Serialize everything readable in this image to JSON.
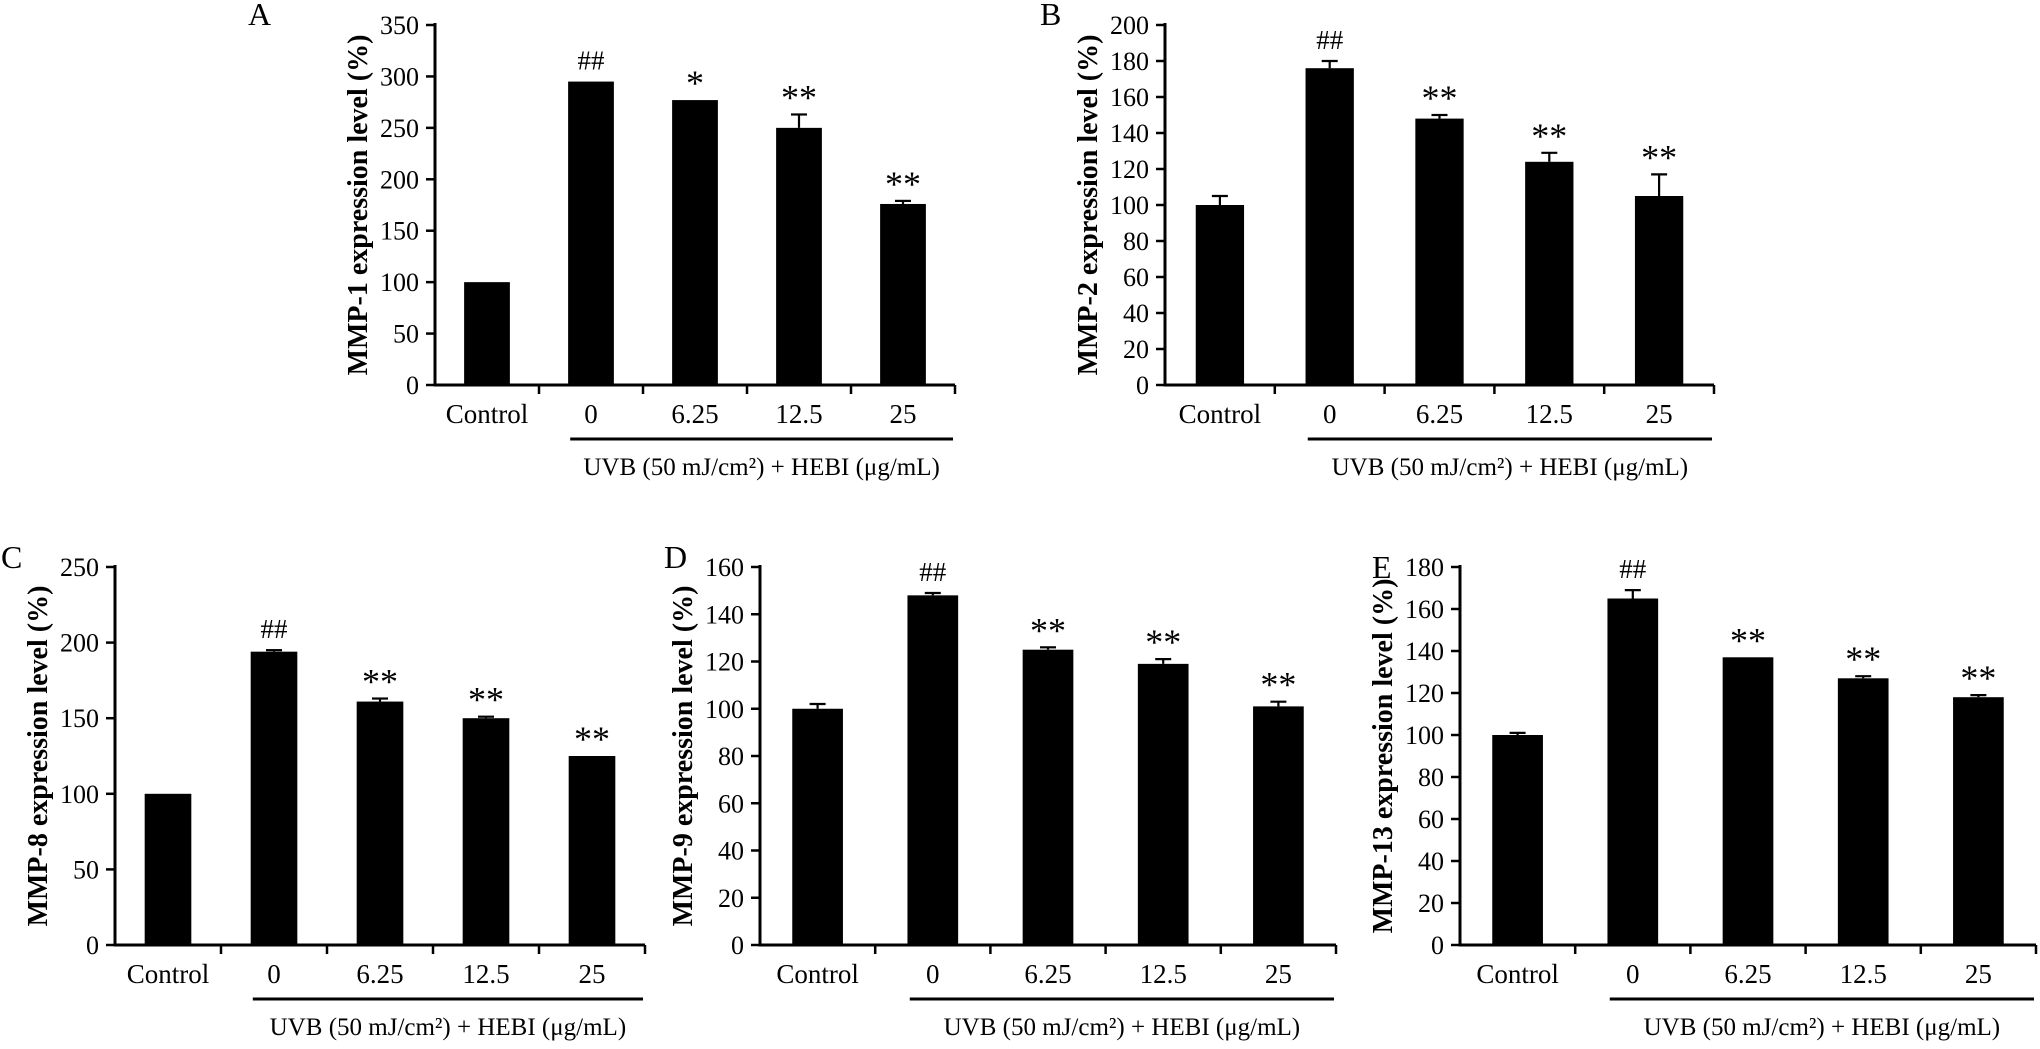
{
  "figure": {
    "background": "#ffffff",
    "bar_color": "#000000",
    "panels": [
      "A",
      "B",
      "C",
      "D",
      "E"
    ]
  },
  "chart_data": [
    {
      "type": "bar",
      "panel": "A",
      "ylabel": "MMP-1 expression level (%)",
      "xlabel": "",
      "categories": [
        "Control",
        "0",
        "6.25",
        "12.5",
        "25"
      ],
      "values": [
        100,
        295,
        277,
        250,
        176
      ],
      "errors": [
        0,
        0,
        0,
        13,
        3
      ],
      "annotations": [
        "",
        "##",
        "*",
        "**",
        "**"
      ],
      "ylim": [
        0,
        350
      ],
      "ytick_step": 50,
      "grid": false,
      "legend": "none",
      "group_label": "UVB (50 mJ/cm²) + HEBI (μg/mL)",
      "group_applies_to": [
        "0",
        "6.25",
        "12.5",
        "25"
      ]
    },
    {
      "type": "bar",
      "panel": "B",
      "ylabel": "MMP-2 expression level (%)",
      "xlabel": "",
      "categories": [
        "Control",
        "0",
        "6.25",
        "12.5",
        "25"
      ],
      "values": [
        100,
        176,
        148,
        124,
        105
      ],
      "errors": [
        5,
        4,
        2,
        5,
        12
      ],
      "annotations": [
        "",
        "##",
        "**",
        "**",
        "**"
      ],
      "ylim": [
        0,
        200
      ],
      "ytick_step": 20,
      "grid": false,
      "legend": "none",
      "group_label": "UVB (50 mJ/cm²) + HEBI (μg/mL)",
      "group_applies_to": [
        "0",
        "6.25",
        "12.5",
        "25"
      ]
    },
    {
      "type": "bar",
      "panel": "C",
      "ylabel": "MMP-8 expression level (%)",
      "xlabel": "",
      "categories": [
        "Control",
        "0",
        "6.25",
        "12.5",
        "25"
      ],
      "values": [
        100,
        194,
        161,
        150,
        125
      ],
      "errors": [
        0,
        1,
        2,
        1,
        0
      ],
      "annotations": [
        "",
        "##",
        "**",
        "**",
        "**"
      ],
      "ylim": [
        0,
        250
      ],
      "ytick_step": 50,
      "grid": false,
      "legend": "none",
      "group_label": "UVB (50 mJ/cm²) + HEBI (μg/mL)",
      "group_applies_to": [
        "0",
        "6.25",
        "12.5",
        "25"
      ]
    },
    {
      "type": "bar",
      "panel": "D",
      "ylabel": "MMP-9 expression level (%)",
      "xlabel": "",
      "categories": [
        "Control",
        "0",
        "6.25",
        "12.5",
        "25"
      ],
      "values": [
        100,
        148,
        125,
        119,
        101
      ],
      "errors": [
        2,
        1,
        1,
        2,
        2
      ],
      "annotations": [
        "",
        "##",
        "**",
        "**",
        "**"
      ],
      "ylim": [
        0,
        160
      ],
      "ytick_step": 20,
      "grid": false,
      "legend": "none",
      "group_label": "UVB (50 mJ/cm²) + HEBI (μg/mL)",
      "group_applies_to": [
        "0",
        "6.25",
        "12.5",
        "25"
      ]
    },
    {
      "type": "bar",
      "panel": "E",
      "ylabel": "MMP-13 expression level (%)",
      "xlabel": "",
      "categories": [
        "Control",
        "0",
        "6.25",
        "12.5",
        "25"
      ],
      "values": [
        100,
        165,
        137,
        127,
        118
      ],
      "errors": [
        1,
        4,
        0,
        1,
        1
      ],
      "annotations": [
        "",
        "##",
        "**",
        "**",
        "**"
      ],
      "ylim": [
        0,
        180
      ],
      "ytick_step": 20,
      "grid": false,
      "legend": "none",
      "group_label": "UVB (50 mJ/cm²) + HEBI (μg/mL)",
      "group_applies_to": [
        "0",
        "6.25",
        "12.5",
        "25"
      ]
    }
  ]
}
